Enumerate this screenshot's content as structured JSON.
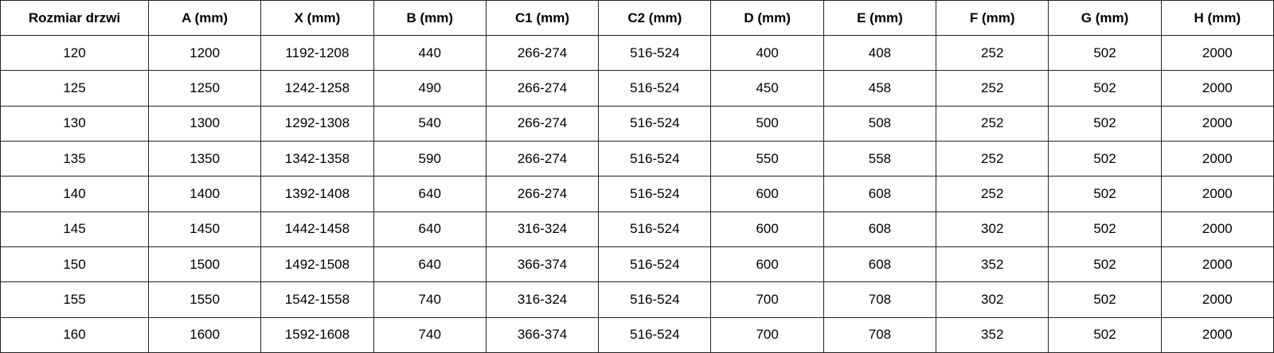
{
  "headers": [
    "Rozmiar drzwi",
    "A (mm)",
    "X (mm)",
    "B (mm)",
    "C1 (mm)",
    "C2 (mm)",
    "D (mm)",
    "E (mm)",
    "F (mm)",
    "G (mm)",
    "H (mm)"
  ],
  "rows": [
    [
      "120",
      "1200",
      "1192-1208",
      "440",
      "266-274",
      "516-524",
      "400",
      "408",
      "252",
      "502",
      "2000"
    ],
    [
      "125",
      "1250",
      "1242-1258",
      "490",
      "266-274",
      "516-524",
      "450",
      "458",
      "252",
      "502",
      "2000"
    ],
    [
      "130",
      "1300",
      "1292-1308",
      "540",
      "266-274",
      "516-524",
      "500",
      "508",
      "252",
      "502",
      "2000"
    ],
    [
      "135",
      "1350",
      "1342-1358",
      "590",
      "266-274",
      "516-524",
      "550",
      "558",
      "252",
      "502",
      "2000"
    ],
    [
      "140",
      "1400",
      "1392-1408",
      "640",
      "266-274",
      "516-524",
      "600",
      "608",
      "252",
      "502",
      "2000"
    ],
    [
      "145",
      "1450",
      "1442-1458",
      "640",
      "316-324",
      "516-524",
      "600",
      "608",
      "302",
      "502",
      "2000"
    ],
    [
      "150",
      "1500",
      "1492-1508",
      "640",
      "366-374",
      "516-524",
      "600",
      "608",
      "352",
      "502",
      "2000"
    ],
    [
      "155",
      "1550",
      "1542-1558",
      "740",
      "316-324",
      "516-524",
      "700",
      "708",
      "302",
      "502",
      "2000"
    ],
    [
      "160",
      "1600",
      "1592-1608",
      "740",
      "366-374",
      "516-524",
      "700",
      "708",
      "352",
      "502",
      "2000"
    ]
  ]
}
